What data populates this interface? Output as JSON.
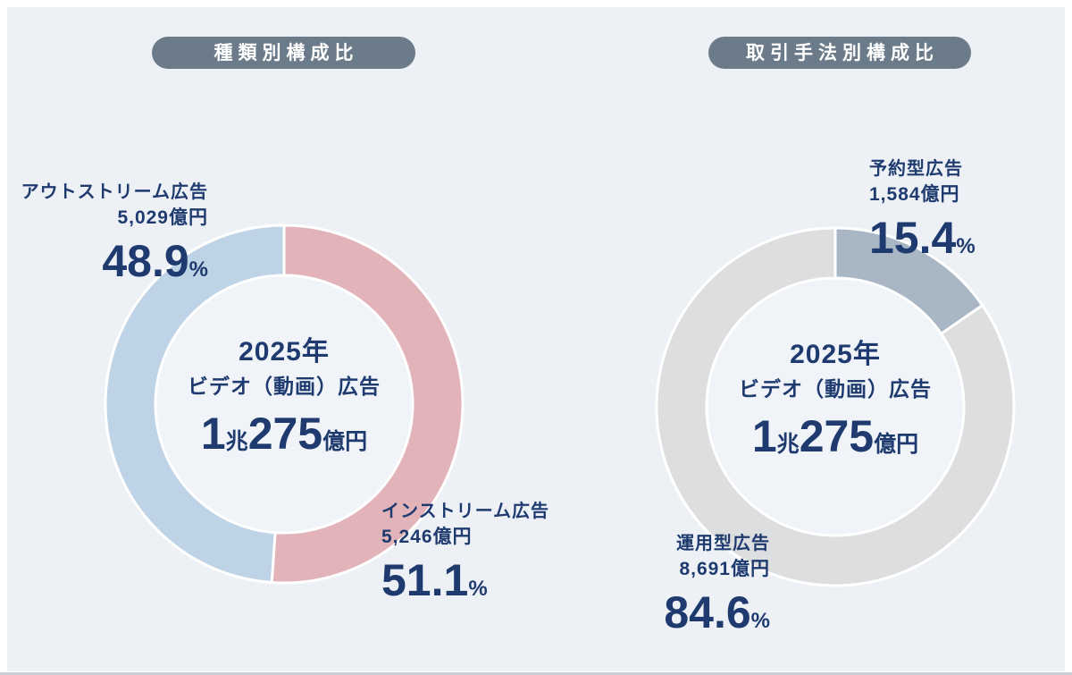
{
  "page": {
    "background": "#ffffff",
    "panel_background": "#edf1f6",
    "text_color": "#1e3a6e",
    "badge_background": "#6b7b8a",
    "badge_text_color": "#ffffff",
    "bottom_line_color": "#c9ced4"
  },
  "units": {
    "percent": "%"
  },
  "chart_data": [
    {
      "type": "pie",
      "subtype": "donut",
      "title": "種類別構成比",
      "start_angle_deg": 0,
      "direction": "clockwise",
      "hole_color": "#f0f4f8",
      "separator_color": "#ffffff",
      "center": {
        "year": "2025年",
        "category": "ビデオ（動画）広告",
        "total_label": "1兆275億円",
        "total_parts": {
          "p1": "1",
          "u1": "兆",
          "p2": "275",
          "u2": "億円"
        }
      },
      "segments": [
        {
          "label": "インストリーム広告",
          "value_oku_yen": 5246,
          "amount_label": "5,246億円",
          "pct": 51.1,
          "color": "#e2b4b9"
        },
        {
          "label": "アウトストリーム広告",
          "value_oku_yen": 5029,
          "amount_label": "5,029億円",
          "pct": 48.9,
          "color": "#bfd3e6"
        }
      ]
    },
    {
      "type": "pie",
      "subtype": "donut",
      "title": "取引手法別構成比",
      "start_angle_deg": 0,
      "direction": "clockwise",
      "hole_color": "#f0f4f8",
      "separator_color": "#ffffff",
      "center": {
        "year": "2025年",
        "category": "ビデオ（動画）広告",
        "total_label": "1兆275億円",
        "total_parts": {
          "p1": "1",
          "u1": "兆",
          "p2": "275",
          "u2": "億円"
        }
      },
      "segments": [
        {
          "label": "予約型広告",
          "value_oku_yen": 1584,
          "amount_label": "1,584億円",
          "pct": 15.4,
          "color": "#a9b7c4"
        },
        {
          "label": "運用型広告",
          "value_oku_yen": 8691,
          "amount_label": "8,691億円",
          "pct": 84.6,
          "color": "#dcdedf"
        }
      ]
    }
  ]
}
